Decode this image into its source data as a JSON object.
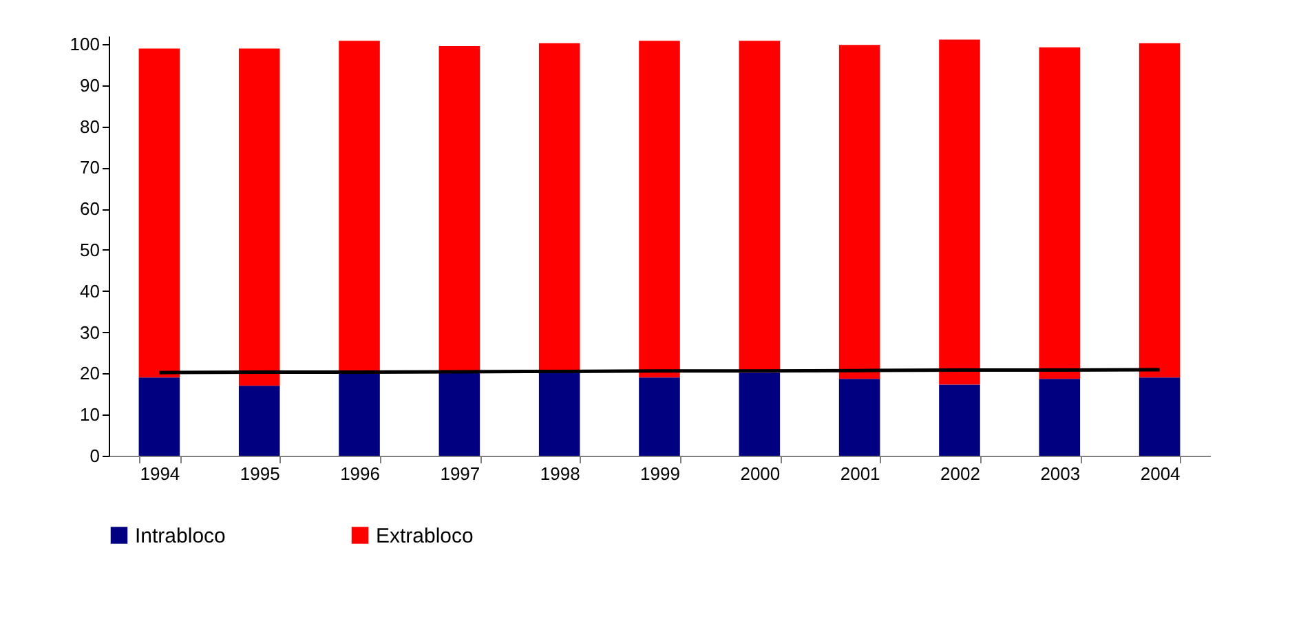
{
  "chart_data": {
    "type": "bar",
    "stacked": true,
    "categories": [
      "1994",
      "1995",
      "1996",
      "1997",
      "1998",
      "1999",
      "2000",
      "2001",
      "2002",
      "2003",
      "2004"
    ],
    "series": [
      {
        "name": "Intrabloco",
        "color": "#000080",
        "values": [
          19.0,
          17.0,
          20.0,
          20.5,
          20.8,
          19.0,
          20.2,
          18.7,
          17.3,
          18.7,
          19.0
        ]
      },
      {
        "name": "Extrabloco",
        "color": "#ff0000",
        "values": [
          79.9,
          81.9,
          80.8,
          79.0,
          79.4,
          81.8,
          80.6,
          81.1,
          83.8,
          80.5,
          81.2
        ]
      },
      {
        "type": "line",
        "color": "#000000",
        "marker": "none",
        "values": [
          20.2,
          20.3,
          20.3,
          20.4,
          20.5,
          20.6,
          20.6,
          20.7,
          20.8,
          20.8,
          20.9
        ]
      }
    ],
    "ylim": [
      0,
      102
    ],
    "yticks": [
      0,
      10,
      20,
      30,
      40,
      50,
      60,
      70,
      80,
      90,
      100
    ],
    "grid": false,
    "legend": "bottom"
  }
}
